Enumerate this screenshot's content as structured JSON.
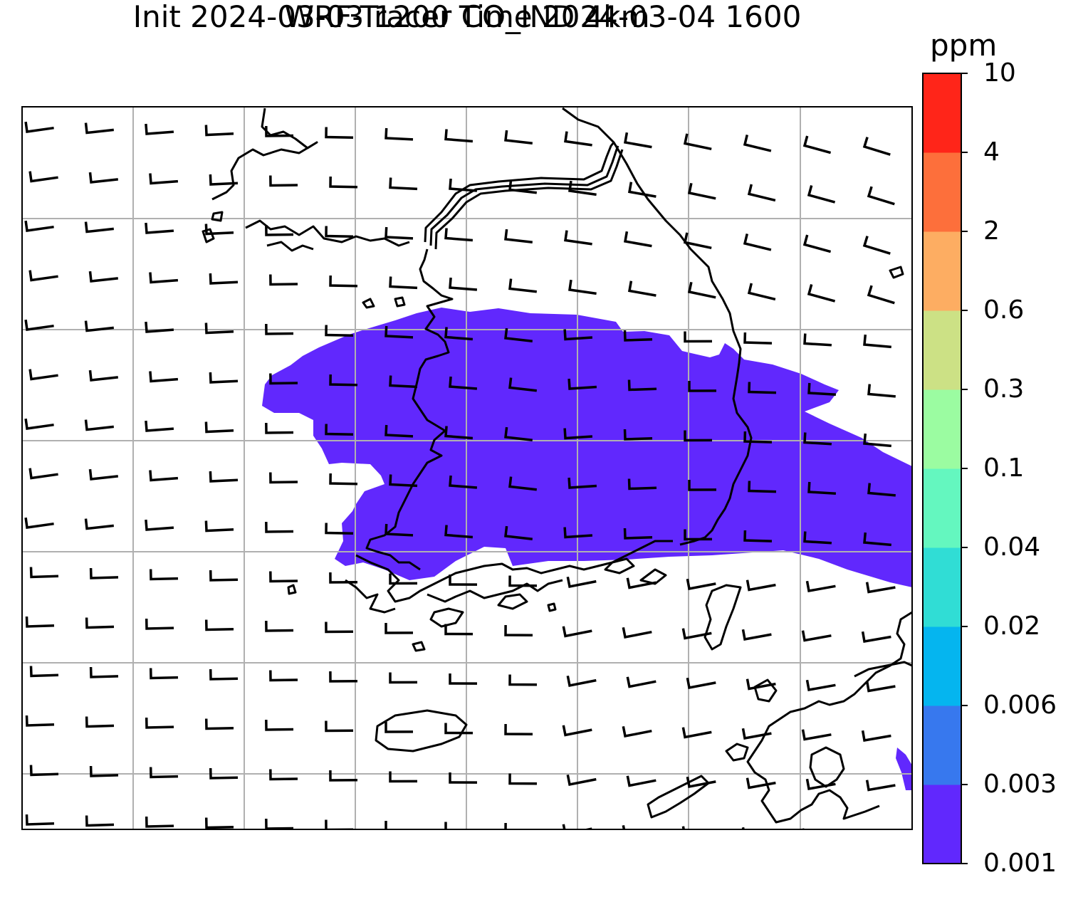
{
  "title": {
    "line1": "WRF-Tracer CO_IND 4km",
    "line2": "Init 2024-03-03 1200 Time 2024-03-04 1600"
  },
  "colorbar": {
    "unit": "ppm",
    "levels": [
      "0.001",
      "0.003",
      "0.006",
      "0.02",
      "0.04",
      "0.1",
      "0.3",
      "0.6",
      "2",
      "4",
      "10"
    ],
    "colors": [
      "#6128fd",
      "#3778ee",
      "#05b5ef",
      "#30ddd5",
      "#64f7bf",
      "#9bfca1",
      "#cce185",
      "#fdad62",
      "#fd6f3b",
      "#ff2519"
    ]
  },
  "map": {
    "plume_color": "#6128fd",
    "gridline_color": "#b0b0b0",
    "coastline_color": "#000000"
  }
}
